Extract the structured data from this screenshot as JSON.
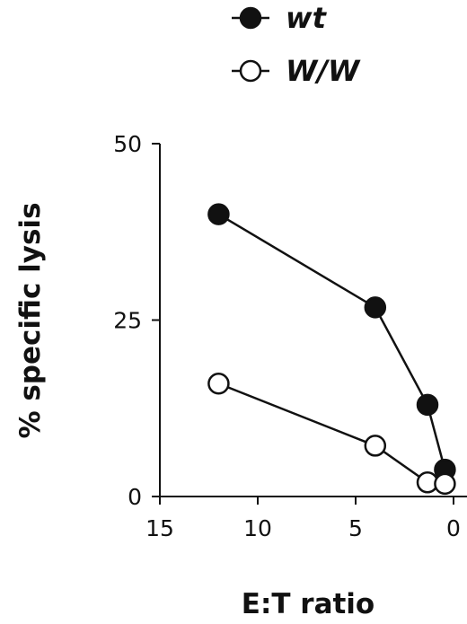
{
  "chart_data": {
    "type": "line",
    "xlabel": "E:T ratio",
    "ylabel": "% specific lysis",
    "xlim": [
      15,
      0
    ],
    "ylim": [
      0,
      50
    ],
    "x_reversed": true,
    "xticks": [
      15,
      10,
      5,
      0
    ],
    "yticks": [
      0,
      25,
      50
    ],
    "xtick_labels": [
      "15",
      "10",
      "5",
      "0"
    ],
    "ytick_labels": [
      "0",
      "25",
      "50"
    ],
    "legend_position": "top",
    "grid": false,
    "series": [
      {
        "name": "wt",
        "marker": "filled-circle",
        "color": "#111111",
        "x": [
          12,
          4,
          1.33,
          0.44
        ],
        "y": [
          40,
          26.8,
          13,
          3.8
        ]
      },
      {
        "name": "W/W",
        "marker": "open-circle",
        "color": "#111111",
        "x": [
          12,
          4,
          1.33,
          0.44
        ],
        "y": [
          16,
          7.2,
          2,
          1.8
        ]
      }
    ]
  }
}
